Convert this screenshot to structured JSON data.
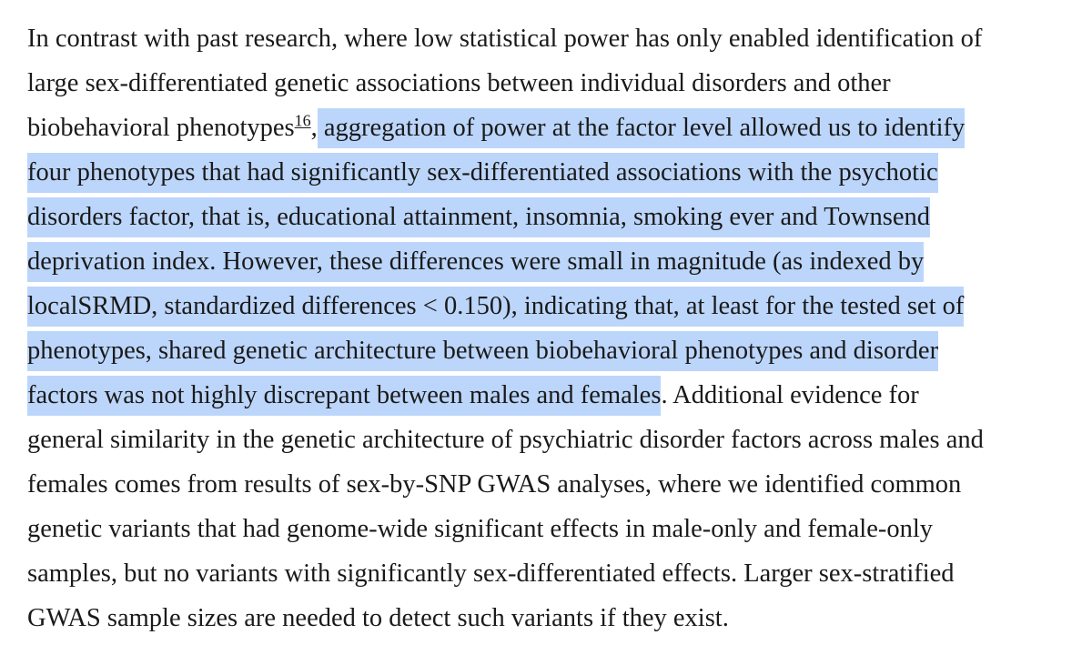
{
  "article": {
    "lines": [
      {
        "before": "In contrast with past research, where low statistical power has only enabled identification of",
        "highlight": "",
        "after": ""
      },
      {
        "before": "large sex-differentiated genetic associations between individual disorders and other",
        "highlight": "",
        "after": ""
      },
      {
        "before": "biobehavioral phenotypes",
        "ref": "16",
        "mid": ",",
        "highlight": " aggregation of power at the factor level allowed us to identify",
        "after": ""
      },
      {
        "before": "",
        "highlight": "four phenotypes that had significantly sex-differentiated associations with the psychotic",
        "after": ""
      },
      {
        "before": "",
        "highlight": "disorders factor, that is, educational attainment, insomnia, smoking ever and Townsend",
        "after": ""
      },
      {
        "before": "",
        "highlight": "deprivation index. However, these differences were small in magnitude (as indexed by",
        "after": ""
      },
      {
        "before": "",
        "highlight": "localSRMD, standardized differences < 0.150), indicating that, at least for the tested set of",
        "after": ""
      },
      {
        "before": "",
        "highlight": "phenotypes, shared genetic architecture between biobehavioral phenotypes and disorder",
        "after": ""
      },
      {
        "before": "",
        "highlight": "factors was not highly discrepant between males and females",
        "after": ". Additional evidence for"
      },
      {
        "before": "general similarity in the genetic architecture of psychiatric disorder factors across males and",
        "highlight": "",
        "after": ""
      },
      {
        "before": "females comes from results of sex-by-SNP GWAS analyses, where we identified common",
        "highlight": "",
        "after": ""
      },
      {
        "before": "genetic variants that had genome-wide significant effects in male-only and female-only",
        "highlight": "",
        "after": ""
      },
      {
        "before": "samples, but no variants with significantly sex-differentiated effects. Larger sex-stratified",
        "highlight": "",
        "after": ""
      },
      {
        "before": "GWAS sample sizes are needed to detect such variants if they exist.",
        "highlight": "",
        "after": ""
      }
    ]
  },
  "colors": {
    "text": "#1a1a1a",
    "selection_highlight": "#bcd6fb",
    "background": "#ffffff"
  }
}
